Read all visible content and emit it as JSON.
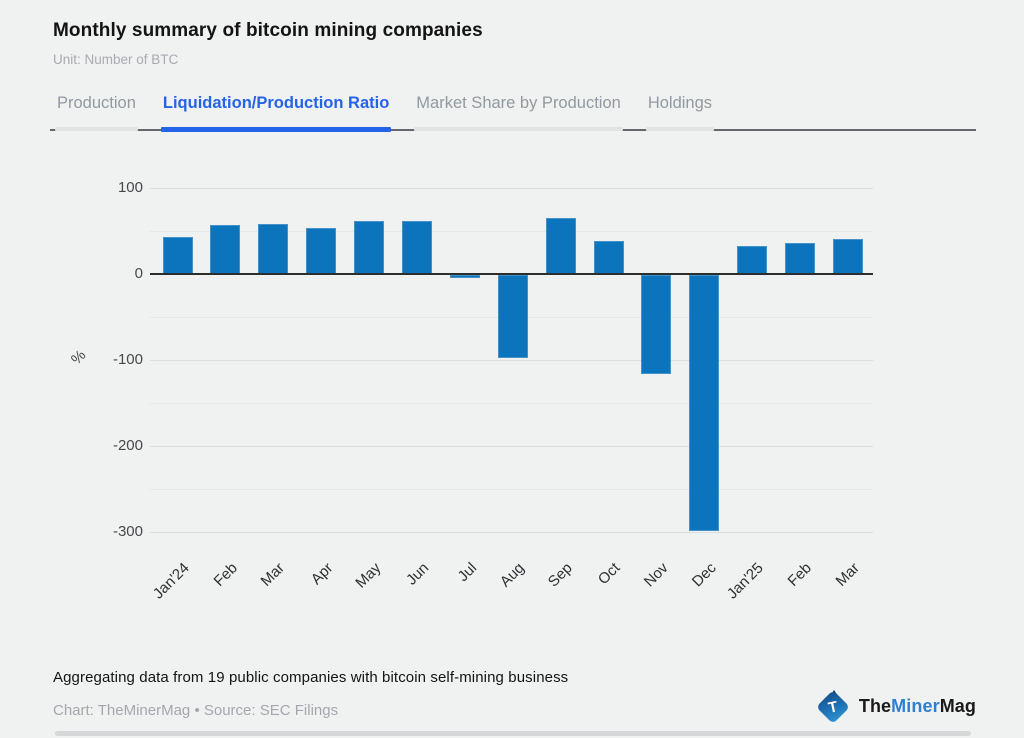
{
  "header": {
    "title": "Monthly summary of bitcoin mining companies",
    "subtitle": "Unit: Number of BTC"
  },
  "tabs": [
    {
      "label": "Production",
      "active": false
    },
    {
      "label": "Liquidation/Production Ratio",
      "active": true
    },
    {
      "label": "Market Share by Production",
      "active": false
    },
    {
      "label": "Holdings",
      "active": false
    }
  ],
  "chart_data": {
    "type": "bar",
    "title": "Liquidation/Production Ratio",
    "categories": [
      "Jan'24",
      "Feb",
      "Mar",
      "Apr",
      "May",
      "Jun",
      "Jul",
      "Aug",
      "Sep",
      "Oct",
      "Nov",
      "Dec",
      "Jan'25",
      "Feb",
      "Mar"
    ],
    "values": [
      43,
      57,
      58,
      53,
      62,
      62,
      -3,
      -96,
      65,
      38,
      -115,
      -298,
      33,
      36,
      41
    ],
    "xlabel": "",
    "ylabel": "%",
    "ylim": [
      -300,
      100
    ],
    "yticks_major": [
      100,
      0,
      -100,
      -200,
      -300
    ],
    "yticks_minor": [
      50,
      -50,
      -150,
      -250
    ],
    "grid": true,
    "legend": false,
    "bar_color": "#0b74bc"
  },
  "footer": {
    "note": "Aggregating data from 19 public companies with bitcoin self-mining business",
    "credit": "Chart: TheMinerMag • Source: SEC Filings"
  },
  "logo": {
    "t": "T",
    "part1": "The",
    "part2": "Miner",
    "part3": "Mag"
  }
}
